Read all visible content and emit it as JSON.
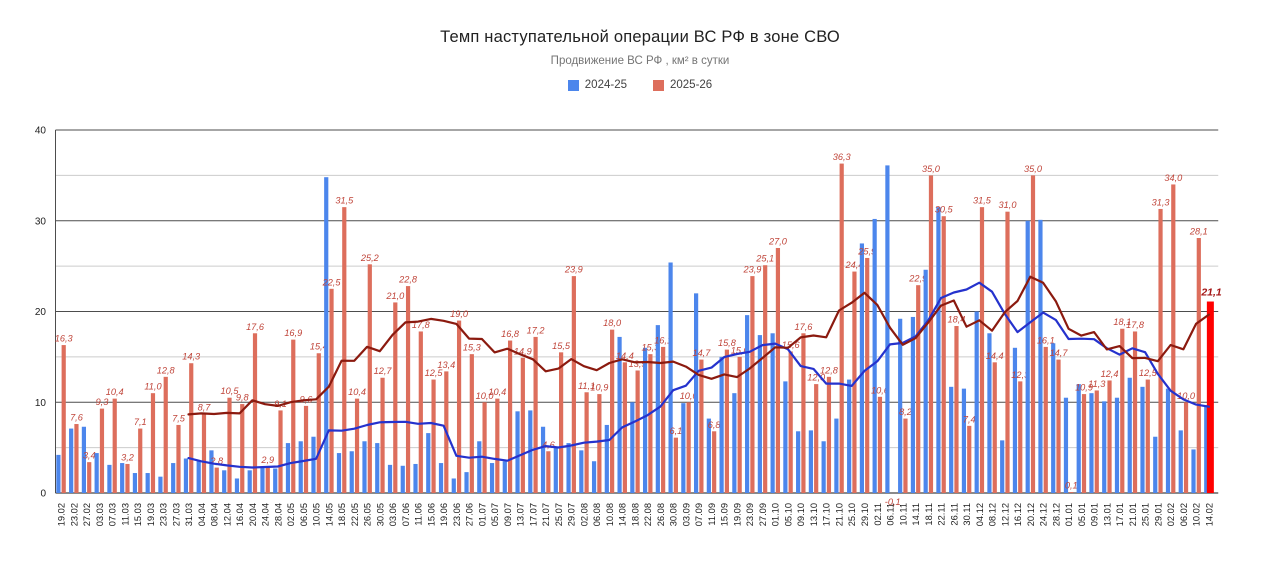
{
  "header": {
    "title": "Темп наступательной операции ВС РФ в зоне СВО",
    "subtitle": "Продвижение ВС РФ , км² в сутки"
  },
  "legend": [
    {
      "label": "2024-25",
      "color": "#4c86ec"
    },
    {
      "label": "2025-26",
      "color": "#dd6e5c"
    }
  ],
  "chart_data": {
    "type": "bar",
    "title": "Темп наступательной операции ВС РФ в зоне СВО",
    "subtitle": "Продвижение ВС РФ , км² в сутки",
    "xlabel": "",
    "ylabel": "",
    "ylim": [
      0,
      40
    ],
    "y_ticks": [
      0,
      10,
      20,
      30,
      40
    ],
    "y_minor_ticks": [
      5,
      15,
      25,
      35
    ],
    "grid": "major-dark-minor-light",
    "legend_position": "top-center",
    "categories": [
      "19.02",
      "23.02",
      "27.02",
      "03.03",
      "07.03",
      "11.03",
      "15.03",
      "19.03",
      "23.03",
      "27.03",
      "31.03",
      "04.04",
      "08.04",
      "12.04",
      "16.04",
      "20.04",
      "24.04",
      "28.04",
      "02.05",
      "06.05",
      "10.05",
      "14.05",
      "18.05",
      "22.05",
      "26.05",
      "30.05",
      "03.06",
      "07.06",
      "11.06",
      "15.06",
      "19.06",
      "23.06",
      "27.06",
      "01.07",
      "05.07",
      "09.07",
      "13.07",
      "17.07",
      "21.07",
      "25.07",
      "29.07",
      "02.08",
      "06.08",
      "10.08",
      "14.08",
      "18.08",
      "22.08",
      "26.08",
      "30.08",
      "03.09",
      "07.09",
      "11.09",
      "15.09",
      "19.09",
      "23.09",
      "27.09",
      "01.10",
      "05.10",
      "09.10",
      "13.10",
      "17.10",
      "21.10",
      "25.10",
      "29.10",
      "02.11",
      "06.11",
      "10.11",
      "14.11",
      "18.11",
      "22.11",
      "26.11",
      "30.11",
      "04.12",
      "08.12",
      "12.12",
      "16.12",
      "20.12",
      "24.12",
      "28.12",
      "01.01",
      "05.01",
      "09.01",
      "13.01",
      "17.01",
      "21.01",
      "25.01",
      "29.01",
      "02.02",
      "06.02",
      "10.02",
      "14.02"
    ],
    "series": [
      {
        "name": "2024-25",
        "color": "#4c86ec",
        "labeled": false,
        "values": [
          4.2,
          7.1,
          7.3,
          4.4,
          3.1,
          3.3,
          2.2,
          2.2,
          1.8,
          3.3,
          3.8,
          3.5,
          4.7,
          2.5,
          1.6,
          2.5,
          2.8,
          2.7,
          5.5,
          5.7,
          6.2,
          34.8,
          4.4,
          4.6,
          5.7,
          5.5,
          3.1,
          3.0,
          3.2,
          6.6,
          3.3,
          1.6,
          2.3,
          5.7,
          3.3,
          3.5,
          9.0,
          9.1,
          7.3,
          5.0,
          5.5,
          4.7,
          3.5,
          7.5,
          17.2,
          10.0,
          16.0,
          18.5,
          25.4,
          9.9,
          22.0,
          8.2,
          15.0,
          11.0,
          19.6,
          17.4,
          17.6,
          12.3,
          6.8,
          6.9,
          5.7,
          8.2,
          12.5,
          27.5,
          30.2,
          36.1,
          19.2,
          19.4,
          24.6,
          31.5,
          11.7,
          11.5,
          20.0,
          17.6,
          5.8,
          16.0,
          30.0,
          30.1,
          16.5,
          10.5,
          12.0,
          11.0,
          10.1,
          10.5,
          12.7,
          11.7,
          6.2,
          11.5,
          6.9,
          4.8,
          9.7
        ]
      },
      {
        "name": "2025-26",
        "color": "#dd6e5c",
        "labeled": true,
        "label_color": "#c0453a",
        "values": [
          16.3,
          7.6,
          3.4,
          9.3,
          10.4,
          3.2,
          7.1,
          11.0,
          12.8,
          7.5,
          14.3,
          8.7,
          2.8,
          10.5,
          9.8,
          17.6,
          2.9,
          9.1,
          16.9,
          9.6,
          15.4,
          22.5,
          31.5,
          10.4,
          25.2,
          12.7,
          21.0,
          22.8,
          17.8,
          12.5,
          13.4,
          19.0,
          15.3,
          10.0,
          10.4,
          16.8,
          14.9,
          17.2,
          4.6,
          15.5,
          23.9,
          11.1,
          10.9,
          18.0,
          14.4,
          13.5,
          15.3,
          16.1,
          6.1,
          10.0,
          14.7,
          6.8,
          15.8,
          15.0,
          23.9,
          25.1,
          27.0,
          15.6,
          17.6,
          12.0,
          12.8,
          36.3,
          24.4,
          25.9,
          10.6,
          -0.1,
          8.2,
          22.9,
          35.0,
          30.5,
          18.4,
          7.4,
          31.5,
          14.4,
          31.0,
          12.3,
          35.0,
          16.1,
          14.7,
          0.1,
          10.9,
          11.3,
          12.4,
          18.1,
          17.8,
          12.5,
          31.3,
          34.0,
          10.0,
          28.1,
          21.1
        ]
      }
    ],
    "trend_lines": [
      {
        "source": "2024-25",
        "type": "trailing-moving-average",
        "window": 10,
        "color": "#2532cd"
      },
      {
        "source": "2025-26",
        "type": "trailing-moving-average",
        "window": 10,
        "color": "#8b1a0f"
      }
    ],
    "highlight_last_point": {
      "category": "14.02",
      "value": 21.1,
      "bar_color": "#ff0000",
      "label": "21,1",
      "label_color": "#a31515",
      "label_bold": true
    },
    "below_axis_labels": [
      {
        "category": "06.11",
        "label": "-0,1"
      },
      {
        "category": "01.01",
        "label": "0,1"
      }
    ]
  }
}
